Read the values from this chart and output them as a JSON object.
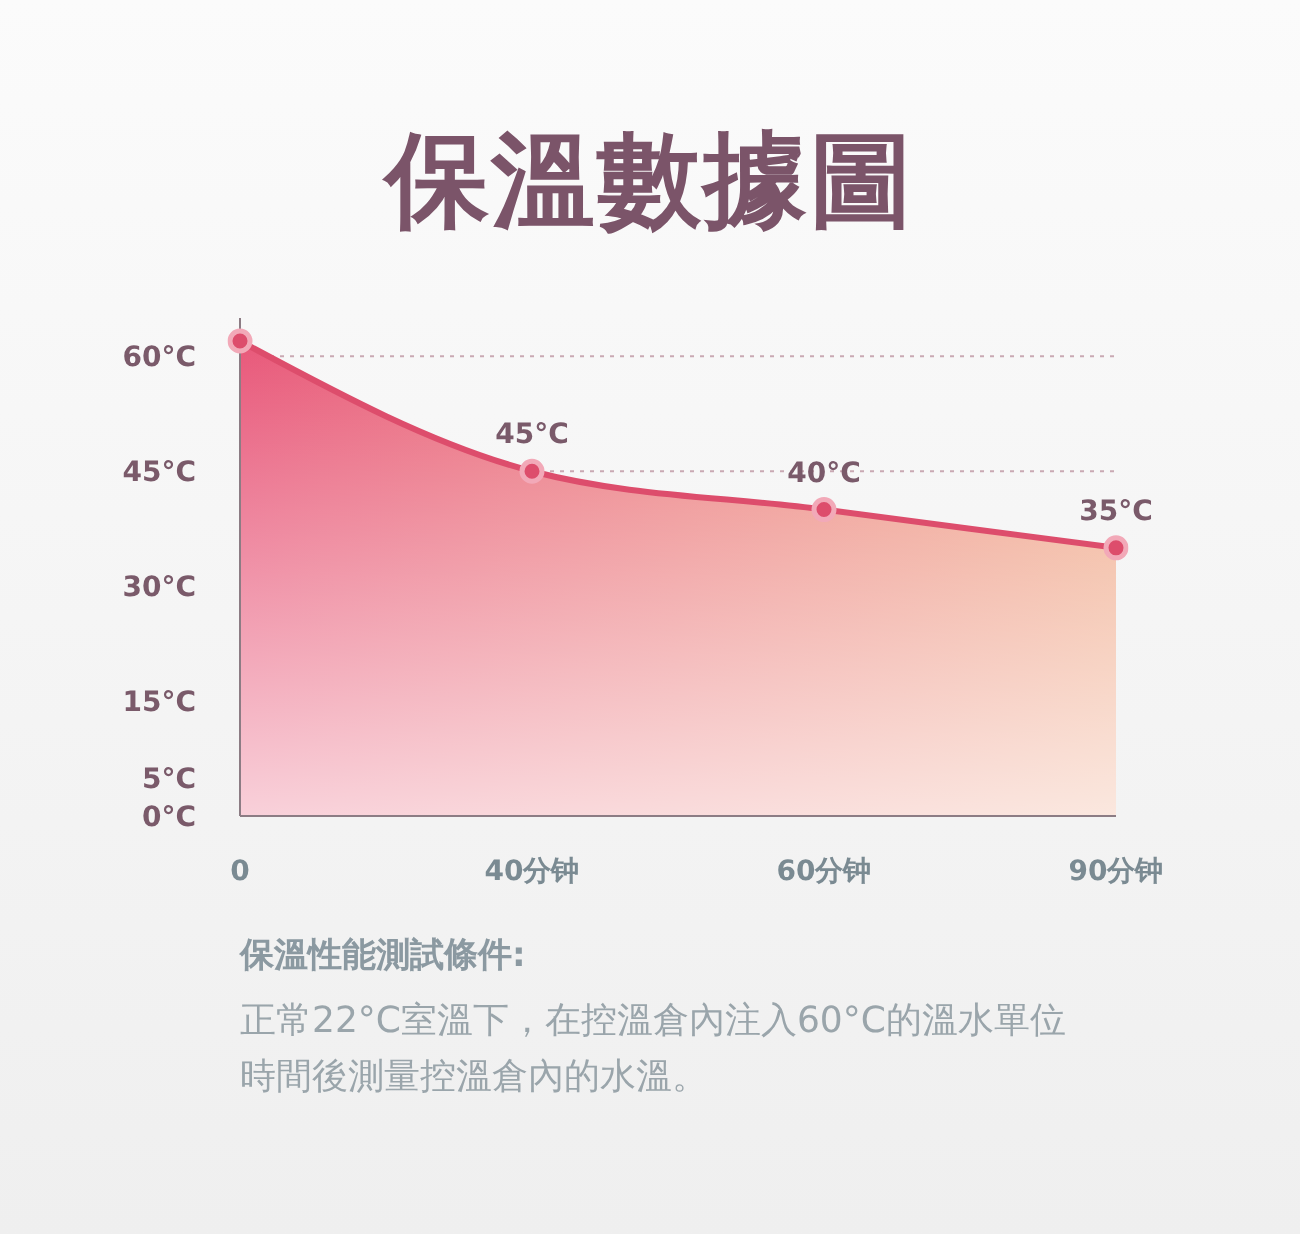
{
  "chart_data": {
    "type": "area",
    "title": "保溫數據圖",
    "categories": [
      "0",
      "40分钟",
      "60分钟",
      "90分钟"
    ],
    "series": [
      {
        "color": "#dd4d6c",
        "values": [
          62,
          45,
          40,
          35
        ],
        "value_labels": [
          null,
          "45°C",
          "40°C",
          "35°C"
        ]
      }
    ],
    "ylim": [
      0,
      65
    ],
    "yticks": [
      {
        "value": 0,
        "label": "0°C"
      },
      {
        "value": 5,
        "label": "5°C"
      },
      {
        "value": 15,
        "label": "15°C"
      },
      {
        "value": 30,
        "label": "30°C"
      },
      {
        "value": 45,
        "label": "45°C"
      },
      {
        "value": 60,
        "label": "60°C"
      }
    ],
    "grid": "y",
    "marker": "circle",
    "annotations": [
      "保溫性能測試條件:",
      "正常22°C室溫下，在控溫倉內注入60°C的溫水單位時間後測量控溫倉內的水溫。"
    ]
  }
}
